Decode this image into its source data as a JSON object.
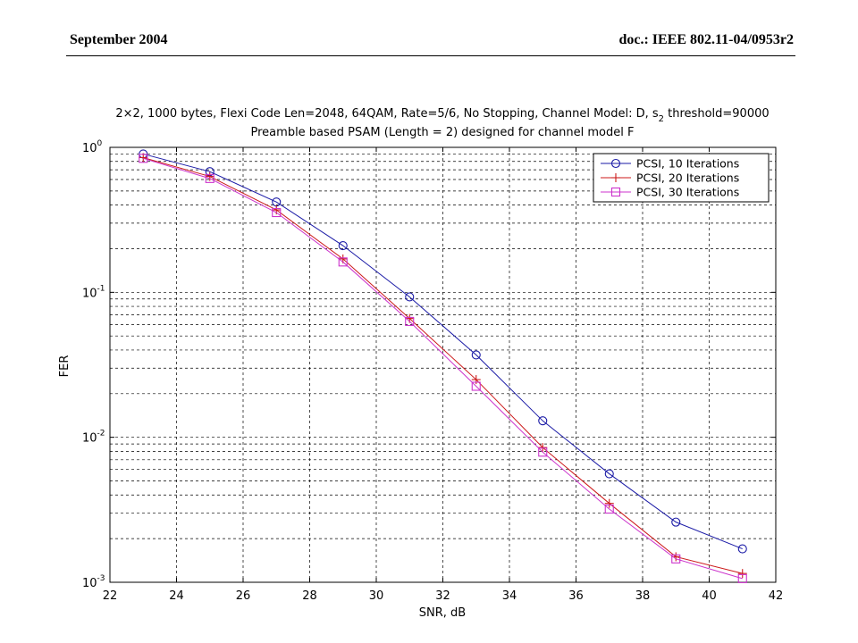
{
  "header": {
    "left": "September 2004",
    "right": "doc.: IEEE 802.11-04/0953r2"
  },
  "chart_data": {
    "type": "line",
    "title_line1_a": "2×2, 1000 bytes, Flexi Code Len=2048, 64QAM, Rate=5/6, No Stopping, Channel Model: D, s",
    "title_line1_sub": "2",
    "title_line1_b": " threshold=90000",
    "title_line2": "Preamble based PSAM (Length = 2) designed for channel model F",
    "xlabel": "SNR, dB",
    "ylabel": "FER",
    "xlim": [
      22,
      42
    ],
    "ylim": [
      0.001,
      1
    ],
    "yscale": "log",
    "grid": true,
    "legend_position": "top-right",
    "xticks": [
      22,
      24,
      26,
      28,
      30,
      32,
      34,
      36,
      38,
      40,
      42
    ],
    "xtick_labels": [
      "22",
      "24",
      "26",
      "28",
      "30",
      "32",
      "34",
      "36",
      "38",
      "40",
      "42"
    ],
    "yticks": [
      {
        "value": 1,
        "base": "10",
        "exp": "0"
      },
      {
        "value": 0.1,
        "base": "10",
        "exp": "-1"
      },
      {
        "value": 0.01,
        "base": "10",
        "exp": "-2"
      },
      {
        "value": 0.001,
        "base": "10",
        "exp": "-3"
      }
    ],
    "x": [
      23,
      25,
      27,
      29,
      31,
      33,
      35,
      37,
      39,
      41
    ],
    "series": [
      {
        "name": "PCSI, 10 Iterations",
        "color": "#1a1aa6",
        "marker": "circle",
        "values": [
          0.9,
          0.68,
          0.42,
          0.21,
          0.093,
          0.037,
          0.013,
          0.0056,
          0.0026,
          0.0017
        ]
      },
      {
        "name": "PCSI, 20 Iterations",
        "color": "#cc1a1a",
        "marker": "plus",
        "values": [
          0.85,
          0.63,
          0.37,
          0.17,
          0.066,
          0.025,
          0.0085,
          0.0035,
          0.0015,
          0.00115
        ]
      },
      {
        "name": "PCSI, 30 Iterations",
        "color": "#cc33cc",
        "marker": "square",
        "values": [
          0.84,
          0.61,
          0.355,
          0.162,
          0.063,
          0.0225,
          0.0079,
          0.0032,
          0.00145,
          0.00106
        ]
      }
    ]
  }
}
